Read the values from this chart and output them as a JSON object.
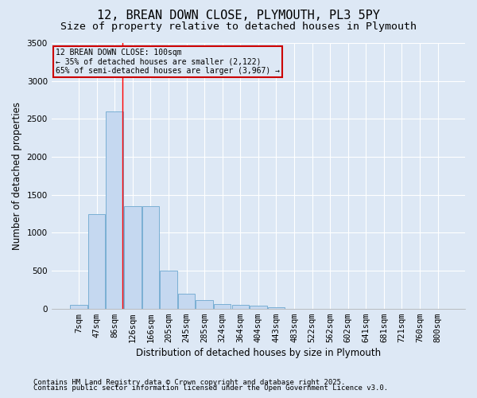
{
  "title": "12, BREAN DOWN CLOSE, PLYMOUTH, PL3 5PY",
  "subtitle": "Size of property relative to detached houses in Plymouth",
  "xlabel": "Distribution of detached houses by size in Plymouth",
  "ylabel": "Number of detached properties",
  "footer1": "Contains HM Land Registry data © Crown copyright and database right 2025.",
  "footer2": "Contains public sector information licensed under the Open Government Licence v3.0.",
  "categories": [
    "7sqm",
    "47sqm",
    "86sqm",
    "126sqm",
    "166sqm",
    "205sqm",
    "245sqm",
    "285sqm",
    "324sqm",
    "364sqm",
    "404sqm",
    "443sqm",
    "483sqm",
    "522sqm",
    "562sqm",
    "602sqm",
    "641sqm",
    "681sqm",
    "721sqm",
    "760sqm",
    "800sqm"
  ],
  "bar_values": [
    50,
    1250,
    2600,
    1350,
    1350,
    500,
    200,
    110,
    55,
    50,
    35,
    20,
    0,
    0,
    0,
    0,
    0,
    0,
    0,
    0,
    0
  ],
  "bar_color": "#c5d8f0",
  "bar_edge_color": "#7aafd4",
  "background_color": "#dde8f5",
  "grid_color": "#ffffff",
  "red_line_x": 2.45,
  "annotation_text": "12 BREAN DOWN CLOSE: 100sqm\n← 35% of detached houses are smaller (2,122)\n65% of semi-detached houses are larger (3,967) →",
  "annotation_box_color": "#cc0000",
  "ylim": [
    0,
    3500
  ],
  "yticks": [
    0,
    500,
    1000,
    1500,
    2000,
    2500,
    3000,
    3500
  ],
  "title_fontsize": 11,
  "subtitle_fontsize": 9.5,
  "axis_label_fontsize": 8.5,
  "tick_fontsize": 7.5,
  "footer_fontsize": 6.5
}
